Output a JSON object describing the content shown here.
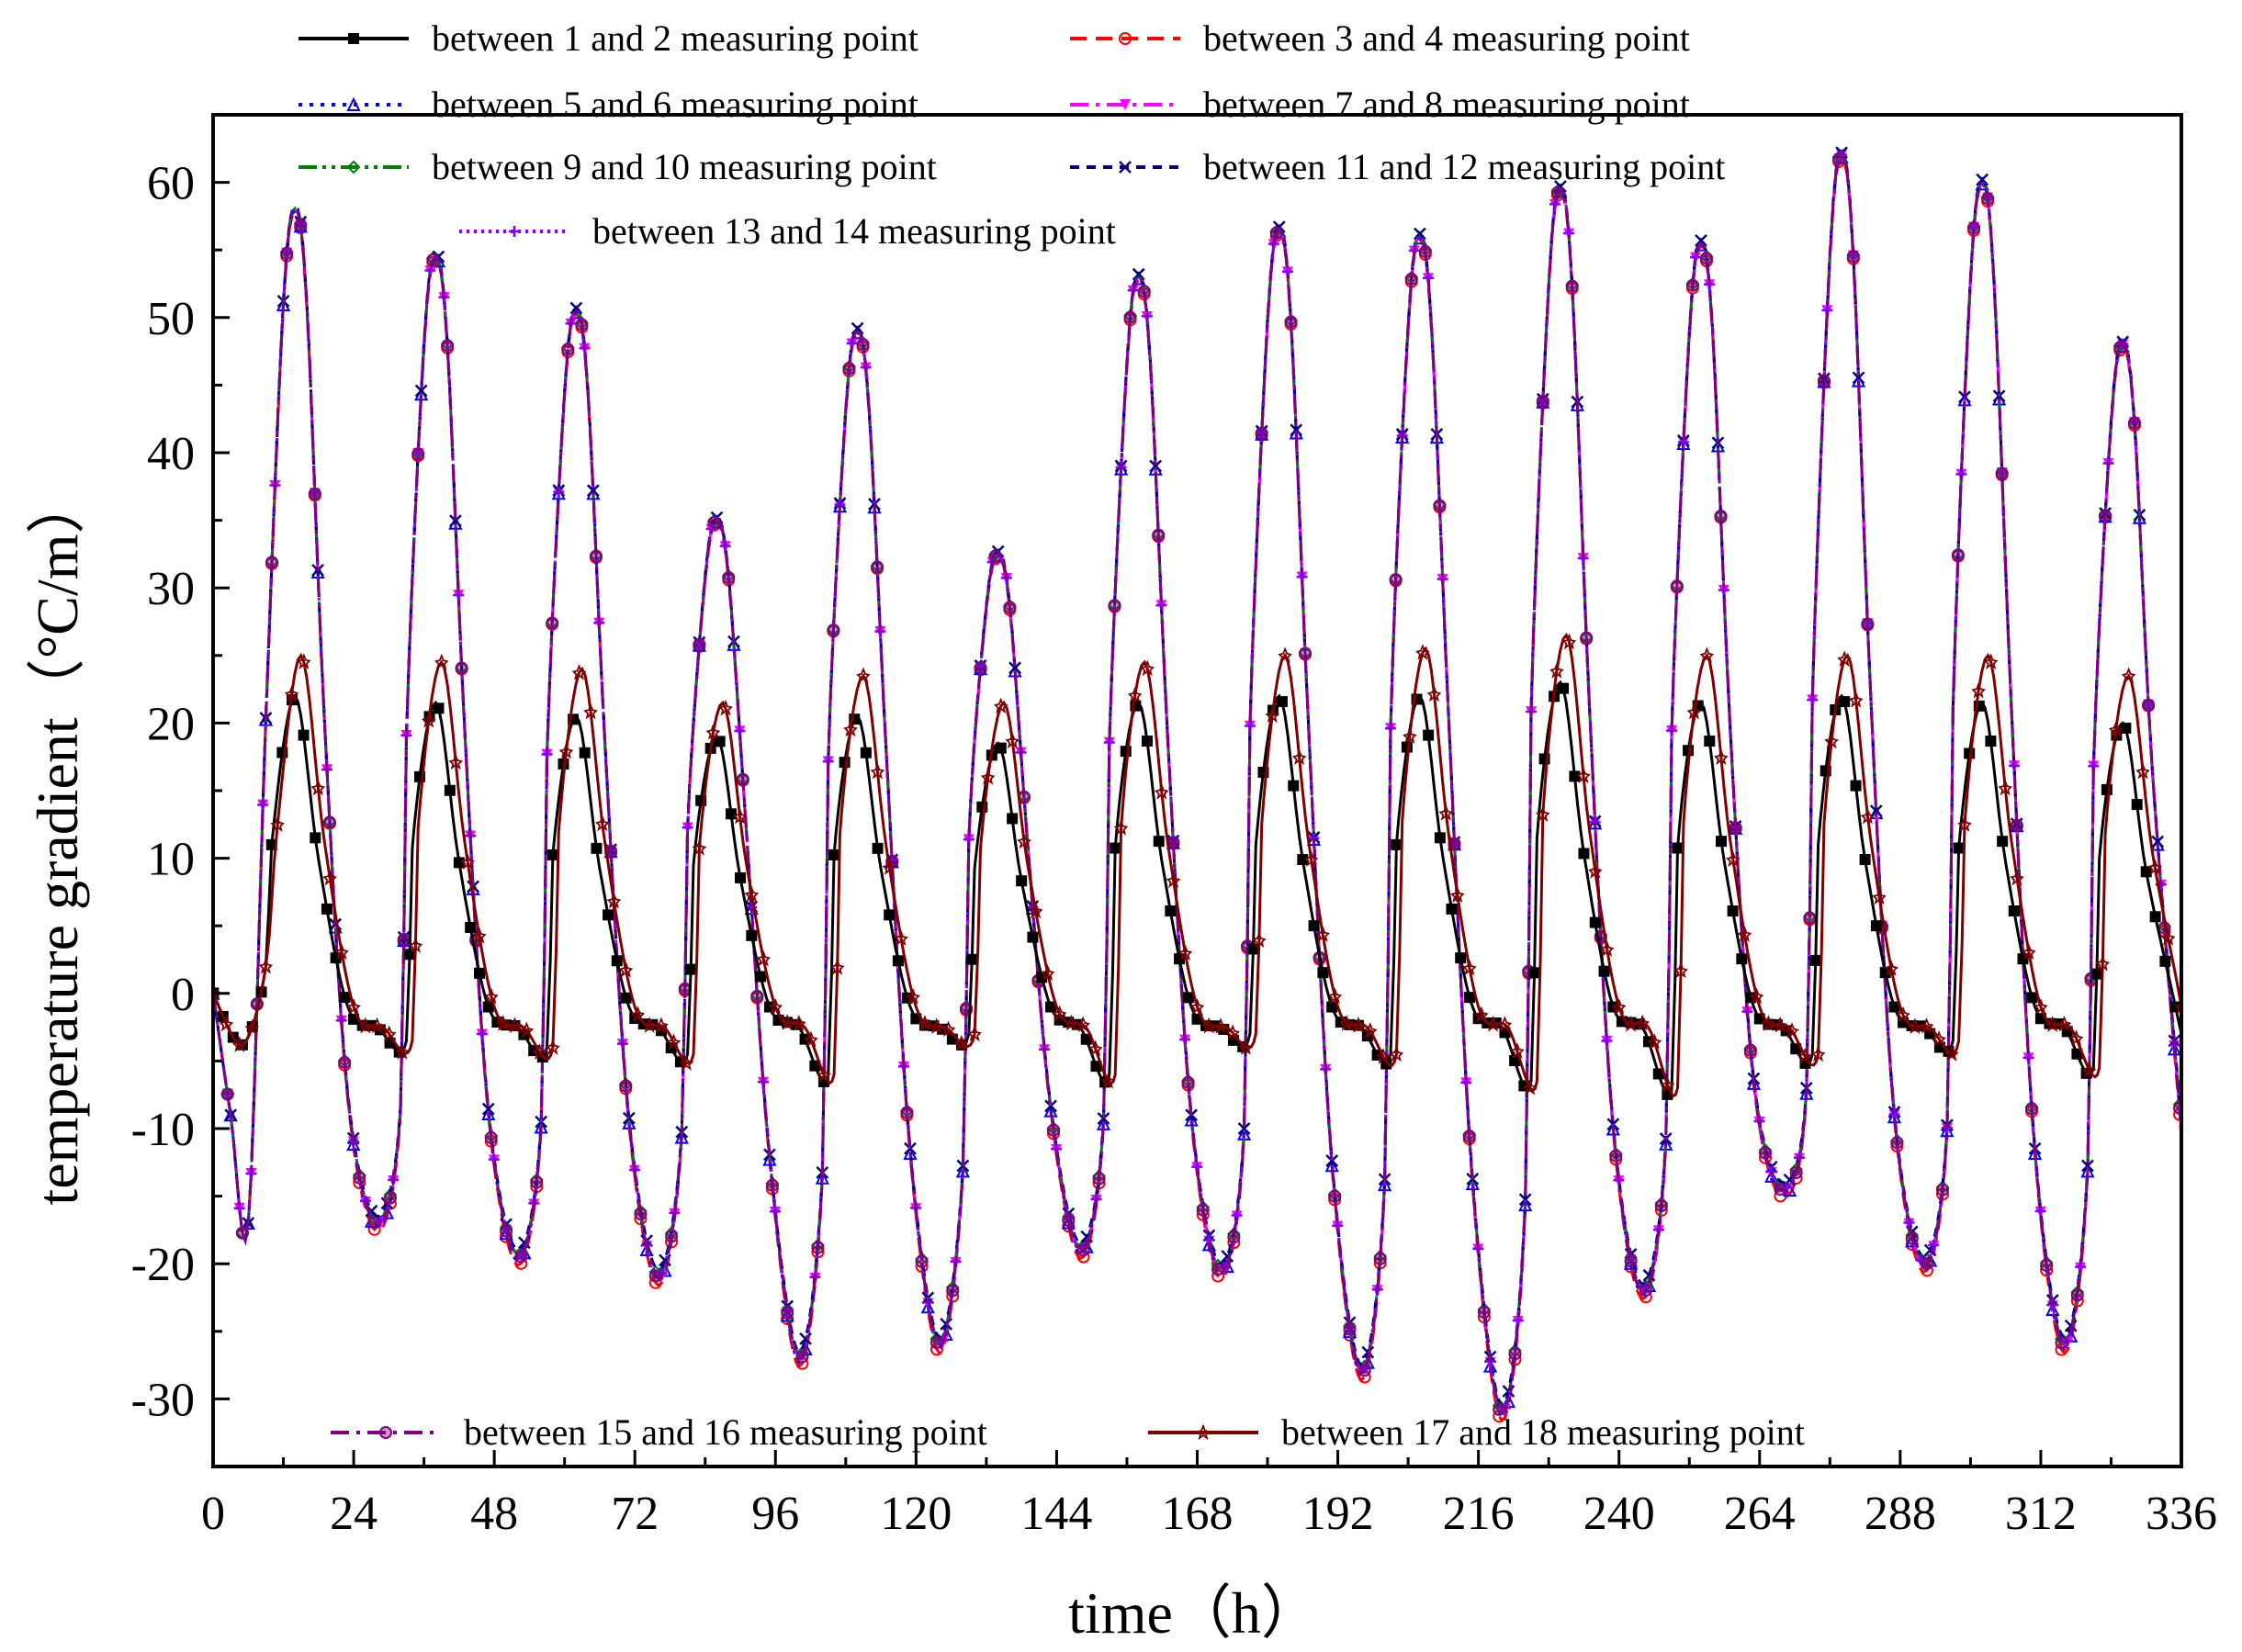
{
  "chart_data": {
    "type": "line",
    "xlabel": "time（h）",
    "ylabel": "temperature gradient（°C/m）",
    "xlim": [
      0,
      336
    ],
    "ylim": [
      -35,
      65
    ],
    "xticks": [
      "0",
      "24",
      "48",
      "72",
      "96",
      "120",
      "144",
      "168",
      "192",
      "216",
      "240",
      "264",
      "288",
      "312",
      "336"
    ],
    "yticks": [
      "-30",
      "-20",
      "-10",
      "0",
      "10",
      "20",
      "30",
      "40",
      "50",
      "60"
    ],
    "day_peak_times": [
      14,
      38,
      62,
      86,
      110,
      134,
      158,
      182,
      206,
      230,
      254,
      278,
      302,
      326
    ],
    "outer_peaks": [
      58,
      54.5,
      50.5,
      35,
      49,
      32.5,
      53,
      56.5,
      56,
      59.5,
      55.5,
      62,
      60,
      48
    ],
    "outer_troughs": [
      -17,
      -19.5,
      -21,
      -27,
      -26,
      -19,
      -20.5,
      -28,
      -31,
      -22,
      -14.5,
      -20,
      -26
    ],
    "inner_peaks_1_2": [
      22,
      21.5,
      20.5,
      19,
      20.5,
      18.5,
      21.5,
      22,
      22,
      23,
      21.5,
      22,
      21.5,
      20
    ],
    "inner_peaks_17_18": [
      25,
      24.5,
      24,
      21.5,
      23.5,
      21.5,
      24.5,
      25,
      25.5,
      26.5,
      25,
      25,
      25,
      23.5
    ],
    "inner_troughs": [
      -3.5,
      -4,
      -4.5,
      -6,
      -3,
      -6,
      -3,
      -4.5,
      -6.5,
      -7,
      -4.5,
      -3.5,
      -5.5,
      -6
    ],
    "series": [
      {
        "name": "between 1 and 2 measuring point",
        "color": "#000000",
        "marker": "square",
        "dash": "solid",
        "group": "inner",
        "offset": 0
      },
      {
        "name": "between 3 and 4 measuring point",
        "color": "#ff0000",
        "marker": "circle",
        "dash": "dashed",
        "group": "outer",
        "offset": -0.6
      },
      {
        "name": "between 5 and 6 measuring point",
        "color": "#0000ff",
        "marker": "triangle",
        "dash": "dotted",
        "group": "outer",
        "offset": -0.3
      },
      {
        "name": "between 7 and 8 measuring point",
        "color": "#ff00ff",
        "marker": "triangle-down",
        "dash": "dashdot",
        "group": "outer",
        "offset": 0
      },
      {
        "name": "between 9 and 10 measuring point",
        "color": "#008000",
        "marker": "diamond",
        "dash": "dashdotdot",
        "group": "outer",
        "offset": 0.2
      },
      {
        "name": "between 11 and 12 measuring point",
        "color": "#000080",
        "marker": "x",
        "dash": "shortdash",
        "group": "outer",
        "offset": 0.5
      },
      {
        "name": "between 13 and 14 measuring point",
        "color": "#8000ff",
        "marker": "plus",
        "dash": "shortdot",
        "group": "outer",
        "offset": 0.1
      },
      {
        "name": "between 15 and 16 measuring point",
        "color": "#800080",
        "marker": "hexagon",
        "dash": "dashdot",
        "group": "outer",
        "offset": -0.1
      },
      {
        "name": "between 17 and 18 measuring point",
        "color": "#800000",
        "marker": "star",
        "dash": "solid",
        "group": "inner",
        "offset": 0
      }
    ]
  }
}
